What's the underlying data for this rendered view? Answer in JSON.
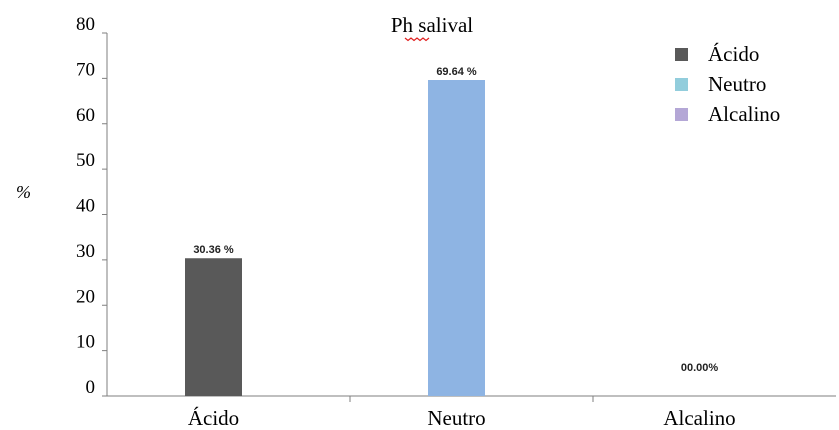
{
  "chart_data": {
    "type": "bar",
    "title": "Ph salival",
    "ylabel": "%",
    "xlabel": "",
    "categories": [
      "Ácido",
      "Neutro",
      "Alcalino"
    ],
    "values": [
      30.36,
      69.64,
      0.0
    ],
    "data_labels": [
      "30.36 %",
      "69.64 %",
      "00.00%"
    ],
    "bar_colors": [
      "#595959",
      "#8EB4E3",
      "#B4A7D6"
    ],
    "ylim": [
      0,
      80
    ],
    "yticks": [
      0,
      10,
      20,
      30,
      40,
      50,
      60,
      70,
      80
    ],
    "grid": false,
    "legend_position": "top-right",
    "legend": [
      {
        "label": "Ácido",
        "color": "#595959"
      },
      {
        "label": "Neutro",
        "color": "#92CDDC"
      },
      {
        "label": "Alcalino",
        "color": "#B4A7D6"
      }
    ]
  }
}
